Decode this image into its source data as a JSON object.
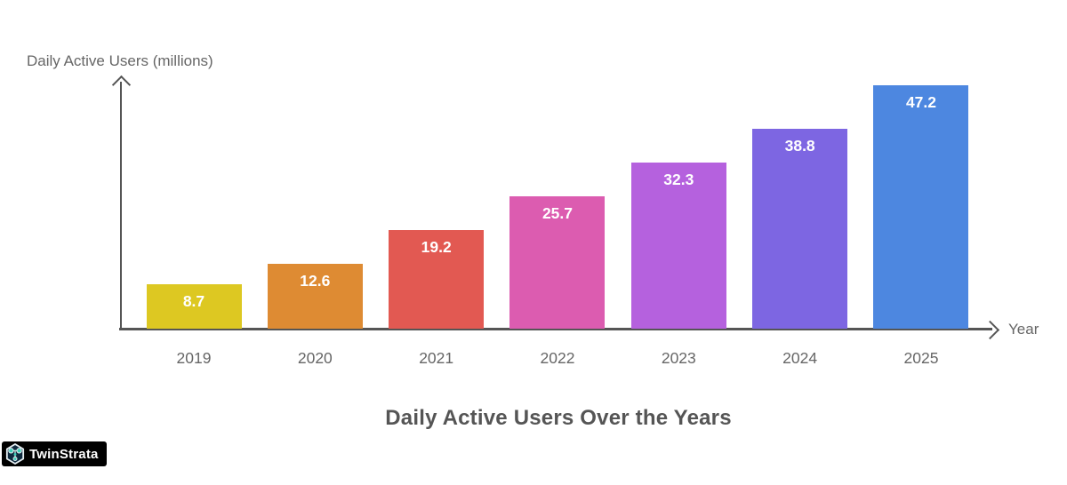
{
  "chart_data": {
    "type": "bar",
    "title": "Daily Active Users Over the Years",
    "ylabel": "Daily Active Users (millions)",
    "xlabel": "Year",
    "categories": [
      "2019",
      "2020",
      "2021",
      "2022",
      "2023",
      "2024",
      "2025"
    ],
    "values": [
      8.7,
      12.6,
      19.2,
      25.7,
      32.3,
      38.8,
      47.2
    ],
    "value_labels": [
      "8.7",
      "12.6",
      "19.2",
      "25.7",
      "32.3",
      "38.8",
      "47.2"
    ],
    "colors": [
      "#ddc822",
      "#de8b33",
      "#e25952",
      "#dc5cb0",
      "#b561de",
      "#7d66e2",
      "#4d87e0"
    ],
    "ylim": [
      0,
      50
    ],
    "grid": false,
    "legend": "none",
    "axis_color": "#555555",
    "tick_label_color": "#666666",
    "bar_label_color": "#ffffff"
  },
  "branding": {
    "name": "TwinStrata",
    "icon": "network-hexagon-icon",
    "badge_bg": "#000000",
    "icon_fill": "#0e2a3f",
    "icon_accent": "#3fd0bb"
  }
}
